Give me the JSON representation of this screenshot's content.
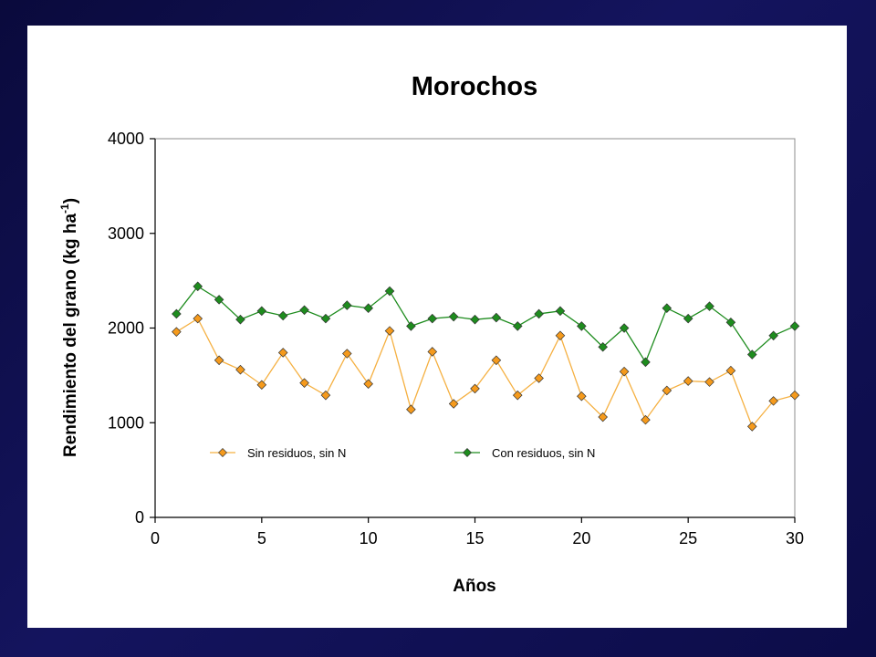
{
  "chart_data": {
    "type": "line",
    "title": "Morochos",
    "xlabel": "Años",
    "ylabel_main": "Rendimiento del grano (kg ha",
    "ylabel_sup": "-1",
    "ylabel_close": ")",
    "xlim": [
      0,
      30
    ],
    "ylim": [
      0,
      4000
    ],
    "x_ticks": [
      0,
      5,
      10,
      15,
      20,
      25,
      30
    ],
    "y_ticks": [
      0,
      1000,
      2000,
      3000,
      4000
    ],
    "grid": false,
    "legend_position": "inside-lower",
    "x": [
      1,
      2,
      3,
      4,
      5,
      6,
      7,
      8,
      9,
      10,
      11,
      12,
      13,
      14,
      15,
      16,
      17,
      18,
      19,
      20,
      21,
      22,
      23,
      24,
      25,
      26,
      27,
      28,
      29,
      30
    ],
    "series": [
      {
        "name": "Sin residuos, sin N",
        "color": "#f59a1c",
        "line_color": "#f5b041",
        "values": [
          1960,
          2100,
          1660,
          1560,
          1400,
          1740,
          1420,
          1290,
          1730,
          1410,
          1970,
          1140,
          1750,
          1200,
          1360,
          1660,
          1290,
          1470,
          1920,
          1280,
          1060,
          1540,
          1030,
          1340,
          1440,
          1430,
          1550,
          960,
          1230,
          1290
        ]
      },
      {
        "name": "Con residuos, sin N",
        "color": "#1e8c1e",
        "line_color": "#1e8c1e",
        "values": [
          2150,
          2440,
          2300,
          2090,
          2180,
          2130,
          2190,
          2100,
          2240,
          2210,
          2390,
          2020,
          2100,
          2120,
          2090,
          2110,
          2020,
          2150,
          2180,
          2020,
          1800,
          2000,
          1640,
          2210,
          2100,
          2230,
          2060,
          1720,
          1920,
          2020
        ]
      }
    ]
  }
}
